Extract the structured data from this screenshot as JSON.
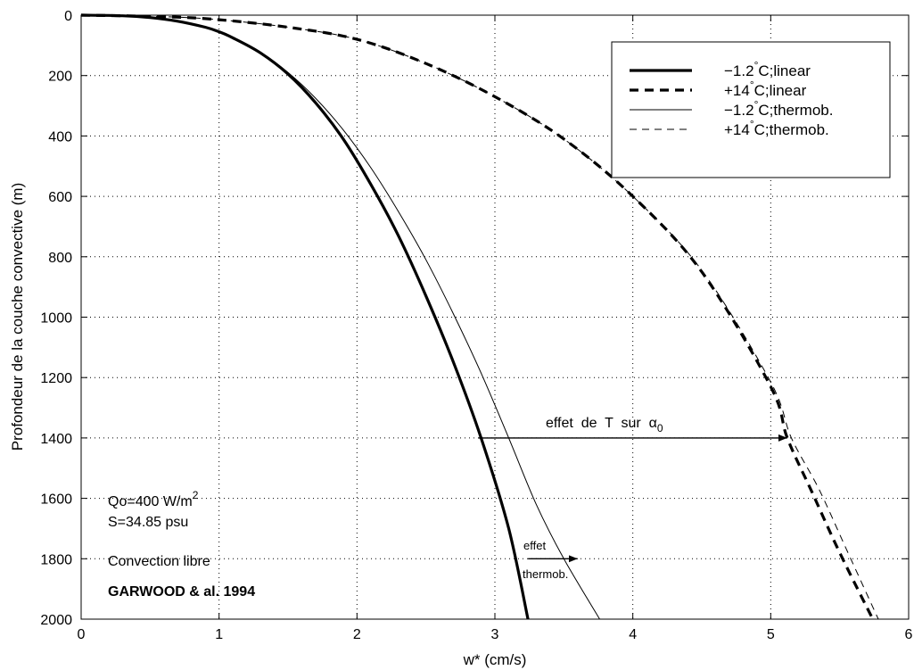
{
  "chart_data": {
    "type": "line",
    "xlabel": "w* (cm/s)",
    "ylabel": "Profondeur de la couche convective (m)",
    "xlim": [
      0,
      6
    ],
    "ylim": [
      0,
      2000
    ],
    "y_inverted": true,
    "x_ticks": [
      "0",
      "1",
      "2",
      "3",
      "4",
      "5",
      "6"
    ],
    "y_ticks": [
      "0",
      "200",
      "400",
      "600",
      "800",
      "1000",
      "1200",
      "1400",
      "1600",
      "1800",
      "2000"
    ],
    "grid": true,
    "legend_position": "top-right",
    "legend": [
      {
        "pre": "−1.2",
        "deg": "°",
        "post": "C;linear",
        "style": "thick-solid"
      },
      {
        "pre": "+14",
        "deg": "°",
        "post": "C;linear",
        "style": "thick-dashed"
      },
      {
        "pre": "−1.2",
        "deg": "°",
        "post": "C;thermob.",
        "style": "thin-solid"
      },
      {
        "pre": "+14",
        "deg": "°",
        "post": "C;thermob.",
        "style": "thin-dashed"
      }
    ],
    "series": [
      {
        "name": "−1.2°C;linear",
        "style": "thick-solid",
        "x": [
          0,
          0.3,
          0.5,
          0.7,
          0.9,
          1.0,
          1.1,
          1.3,
          1.5,
          1.7,
          1.9,
          2.1,
          2.3,
          2.5,
          2.7,
          2.9,
          3.1,
          3.24
        ],
        "y": [
          0,
          2,
          8,
          20,
          40,
          55,
          75,
          125,
          195,
          290,
          410,
          560,
          730,
          930,
          1150,
          1400,
          1700,
          2000
        ]
      },
      {
        "name": "+14°C;linear",
        "style": "thick-dashed",
        "x": [
          0,
          0.6,
          1.0,
          1.5,
          2.0,
          2.5,
          3.0,
          3.5,
          4.0,
          4.5,
          5.0,
          5.12,
          5.3,
          5.5,
          5.74
        ],
        "y": [
          0,
          5,
          15,
          40,
          80,
          160,
          270,
          410,
          600,
          850,
          1230,
          1400,
          1580,
          1780,
          2000
        ]
      },
      {
        "name": "−1.2°C;thermob.",
        "style": "thin-solid",
        "x": [
          0,
          0.3,
          0.5,
          0.7,
          0.9,
          1.0,
          1.1,
          1.3,
          1.5,
          1.7,
          1.9,
          2.1,
          2.3,
          2.5,
          2.7,
          2.9,
          3.1,
          3.3,
          3.5,
          3.76
        ],
        "y": [
          0,
          2,
          8,
          20,
          40,
          55,
          75,
          123,
          190,
          275,
          380,
          505,
          650,
          810,
          990,
          1185,
          1400,
          1620,
          1800,
          2000
        ]
      },
      {
        "name": "+14°C;thermob.",
        "style": "thin-dashed",
        "x": [
          0,
          0.6,
          1.0,
          1.5,
          2.0,
          2.5,
          3.0,
          3.5,
          4.0,
          4.5,
          5.0,
          5.15,
          5.35,
          5.55,
          5.78
        ],
        "y": [
          0,
          5,
          15,
          40,
          80,
          160,
          270,
          410,
          600,
          845,
          1215,
          1400,
          1570,
          1770,
          2000
        ]
      }
    ],
    "annotations": {
      "arrow_alpha": {
        "label_pre": "effet  de  T  sur  ",
        "label_sym": "α",
        "label_sub": "0",
        "x_from": 2.88,
        "x_to": 5.12,
        "y": 1400
      },
      "arrow_thermob": {
        "label1": "effet",
        "label2": "thermob.",
        "x_from": 3.24,
        "x_to": 3.6,
        "y": 1800
      },
      "qo_pre": "Qo=400 W/m",
      "qo_sup": "2",
      "salinity": "S=34.85 psu",
      "regime": "Convection libre",
      "reference": "GARWOOD & al. 1994"
    }
  }
}
